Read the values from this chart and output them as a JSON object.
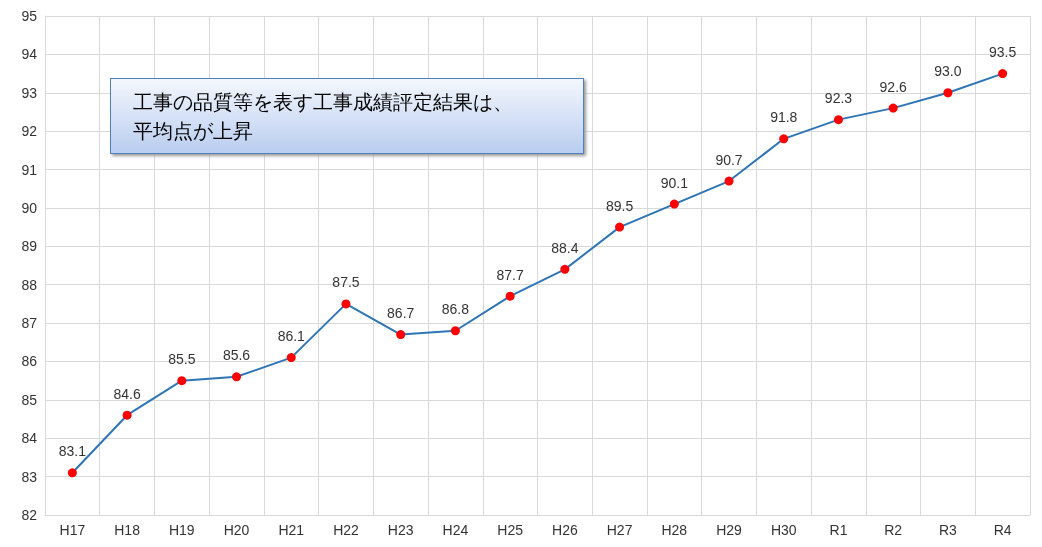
{
  "chart_data": {
    "type": "line",
    "categories": [
      "H17",
      "H18",
      "H19",
      "H20",
      "H21",
      "H22",
      "H23",
      "H24",
      "H25",
      "H26",
      "H27",
      "H28",
      "H29",
      "H30",
      "R1",
      "R2",
      "R3",
      "R4"
    ],
    "series": [
      {
        "color": "#2e75b6",
        "colors": [
          "#ff0000",
          "#ff0000",
          "#ff0000",
          "#ff0000",
          "#ff0000",
          "#ff0000",
          "#ff0000",
          "#ff0000",
          "#ff0000",
          "#ff0000",
          "#ff0000",
          "#ff0000",
          "#ff0000",
          "#ff0000",
          "#ff0000",
          "#ff0000",
          "#ff0000",
          "#ff0000"
        ],
        "values": [
          83.1,
          84.6,
          85.5,
          85.6,
          86.1,
          87.5,
          86.7,
          86.8,
          87.7,
          88.4,
          89.5,
          90.1,
          90.7,
          91.8,
          92.3,
          92.6,
          93.0,
          93.5
        ],
        "value_labels": [
          "83.1",
          "84.6",
          "85.5",
          "85.6",
          "86.1",
          "87.5",
          "86.7",
          "86.8",
          "87.7",
          "88.4",
          "89.5",
          "90.1",
          "90.7",
          "91.8",
          "92.3",
          "92.6",
          "93.0",
          "93.5"
        ]
      }
    ],
    "ylim": [
      82,
      95
    ],
    "yticks": [
      82,
      83,
      84,
      85,
      86,
      87,
      88,
      89,
      90,
      91,
      92,
      93,
      94,
      95
    ],
    "annotations": [
      "工事の品質等を表す工事成績評定結果は、平均点が上昇"
    ],
    "grid": true,
    "marker": "circle",
    "line_style": "solid"
  }
}
